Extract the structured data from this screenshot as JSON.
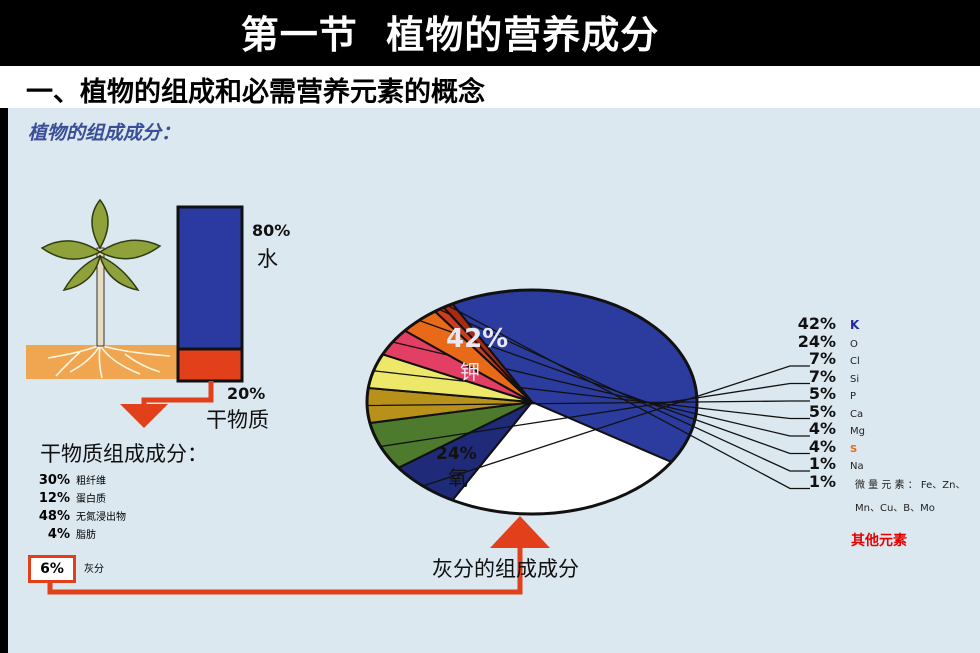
{
  "title": "第一节  植物的营养成分",
  "subtitle": "一、植物的组成和必需营养元素的概念",
  "panel_title": "植物的组成成分：",
  "water": {
    "pct": "80%",
    "name": "水"
  },
  "dry": {
    "pct": "20%",
    "name": "干物质"
  },
  "dry_heading": "干物质组成成分：",
  "dry_components": [
    {
      "pct": "30%",
      "name": "粗纤维"
    },
    {
      "pct": "12%",
      "name": "蛋白质"
    },
    {
      "pct": "48%",
      "name": "无氮浸出物"
    },
    {
      "pct": "4%",
      "name": "脂肪"
    }
  ],
  "ash": {
    "pct": "6%",
    "name": "灰分"
  },
  "ash_heading": "灰分的组成成分",
  "pie_labels": {
    "k_pct": "42%",
    "k_name": "钾",
    "o_pct": "24%",
    "o_name": "氧"
  },
  "micro_note": "微 量 元 素 ： Fe、Zn、Mn、Cu、B、Mo",
  "other_label": "其他元素",
  "colors": {
    "water_bar": "#2b3aa0",
    "dry_bar": "#e2401b",
    "arrow": "#e2401b",
    "panel": "#dbe8ef"
  },
  "chart_data": {
    "type": "pie",
    "title": "灰分的组成成分",
    "slices": [
      {
        "label": "K",
        "value": 42,
        "pct_text": "42%",
        "color": "#2b3b9e"
      },
      {
        "label": "O",
        "value": 24,
        "pct_text": "24%",
        "color": "#ffffff"
      },
      {
        "label": "Cl",
        "value": 7,
        "pct_text": "7%",
        "color": "#1f2a78"
      },
      {
        "label": "Si",
        "value": 7,
        "pct_text": "7%",
        "color": "#4d7a2d"
      },
      {
        "label": "P",
        "value": 5,
        "pct_text": "5%",
        "color": "#b8911b"
      },
      {
        "label": "Ca",
        "value": 5,
        "pct_text": "5%",
        "color": "#ede86a"
      },
      {
        "label": "Mg",
        "value": 4,
        "pct_text": "4%",
        "color": "#e33e63"
      },
      {
        "label": "S",
        "value": 4,
        "pct_text": "4%",
        "color": "#e86a18"
      },
      {
        "label": "Na",
        "value": 1,
        "pct_text": "1%",
        "color": "#cf3b1e"
      },
      {
        "label": "微量元素",
        "value": 1,
        "pct_text": "1%",
        "color": "#a82a14"
      }
    ]
  }
}
